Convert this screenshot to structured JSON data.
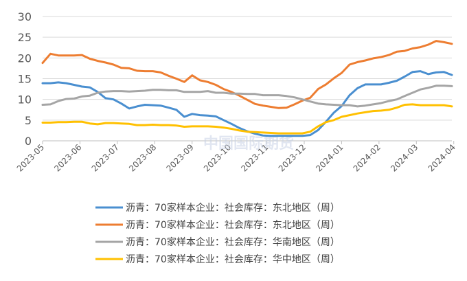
{
  "watermark": {
    "text": "中国国际期货"
  },
  "chart_data": {
    "type": "line",
    "title": "",
    "xlabel": "",
    "ylabel": "",
    "ylim": [
      0,
      30
    ],
    "yticks": [
      "0",
      "5",
      "10",
      "15",
      "20",
      "25",
      "30"
    ],
    "xticks": [
      "2023-05",
      "2023-06",
      "2023-07",
      "2023-08",
      "2023-09",
      "2023-10",
      "2023-11",
      "2023-12",
      "2024-01",
      "2024-02",
      "2024-03",
      "2024-04"
    ],
    "grid": "horizontal",
    "legend_position": "bottom",
    "series": [
      {
        "name": "沥青：70家样本企业：社会库存：东北地区（周）",
        "color": "#4a8fd0",
        "values": [
          13.9,
          13.9,
          14.1,
          13.9,
          13.5,
          13.1,
          12.9,
          11.8,
          10.3,
          10.0,
          9.0,
          7.8,
          8.3,
          8.7,
          8.6,
          8.5,
          8.0,
          7.5,
          5.8,
          6.5,
          6.2,
          6.1,
          5.9,
          5.0,
          4.1,
          3.1,
          2.3,
          1.7,
          1.3,
          1.2,
          1.2,
          1.2,
          1.2,
          1.2,
          1.4,
          2.6,
          4.6,
          6.8,
          8.4,
          11.0,
          12.7,
          13.6,
          13.6,
          13.6,
          14.0,
          14.5,
          15.5,
          16.6,
          16.8,
          16.1,
          16.5,
          16.6,
          15.9
        ]
      },
      {
        "name": "沥青：70家样本企业：社会库存：东北地区（周）",
        "color": "#ed7d31",
        "values": [
          18.8,
          21.0,
          20.6,
          20.6,
          20.6,
          20.7,
          19.8,
          19.3,
          18.9,
          18.4,
          17.6,
          17.5,
          16.9,
          16.8,
          16.8,
          16.5,
          15.7,
          15.0,
          14.2,
          15.8,
          14.6,
          14.2,
          13.5,
          12.5,
          11.8,
          10.9,
          9.9,
          8.9,
          8.5,
          8.2,
          7.9,
          8.0,
          8.8,
          9.7,
          10.4,
          12.5,
          13.6,
          15.1,
          16.4,
          18.4,
          19.0,
          19.4,
          19.9,
          20.2,
          20.7,
          21.5,
          21.7,
          22.3,
          22.6,
          23.2,
          24.1,
          23.8,
          23.4
        ]
      },
      {
        "name": "沥青：70家样本企业：社会库存：华南地区（周）",
        "color": "#a5a5a5",
        "values": [
          8.7,
          8.8,
          9.6,
          10.1,
          10.2,
          10.7,
          10.9,
          11.6,
          11.9,
          12.0,
          12.0,
          11.9,
          12.0,
          12.1,
          12.3,
          12.3,
          12.2,
          12.2,
          11.8,
          11.8,
          11.8,
          12.0,
          11.6,
          11.6,
          11.4,
          11.4,
          11.3,
          11.3,
          11.0,
          11.0,
          11.0,
          10.8,
          10.5,
          10.0,
          9.5,
          9.0,
          8.8,
          8.7,
          8.6,
          8.6,
          8.3,
          8.5,
          8.8,
          9.1,
          9.6,
          10.0,
          10.8,
          11.6,
          12.4,
          12.8,
          13.3,
          13.3,
          13.2
        ]
      },
      {
        "name": "沥青：70家样本企业：社会库存：华中地区（周）",
        "color": "#ffc000",
        "values": [
          4.4,
          4.4,
          4.5,
          4.5,
          4.6,
          4.6,
          4.2,
          4.0,
          4.3,
          4.3,
          4.2,
          4.1,
          3.8,
          3.8,
          3.9,
          3.8,
          3.8,
          3.7,
          3.4,
          3.5,
          3.5,
          3.5,
          3.4,
          3.2,
          2.9,
          2.5,
          2.2,
          2.1,
          2.0,
          1.9,
          1.8,
          1.8,
          1.8,
          1.8,
          2.2,
          3.5,
          4.5,
          5.0,
          5.8,
          6.2,
          6.6,
          6.9,
          7.2,
          7.3,
          7.5,
          8.0,
          8.7,
          8.8,
          8.6,
          8.6,
          8.6,
          8.6,
          8.3
        ]
      }
    ]
  }
}
